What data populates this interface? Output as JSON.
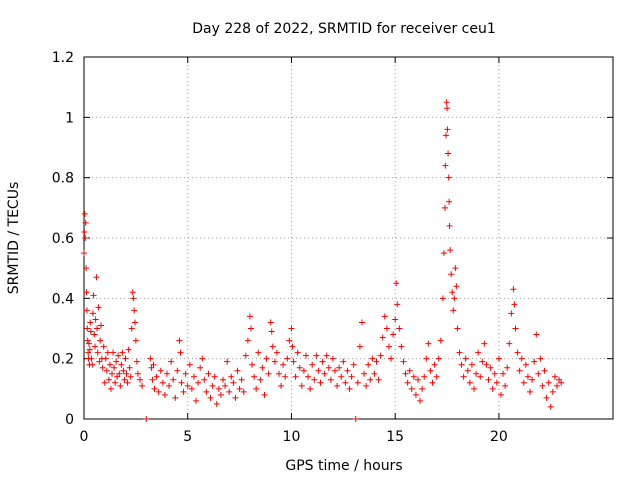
{
  "chart_data": {
    "type": "scatter",
    "title": "Day 228 of 2022, SRMTID for receiver ceu1",
    "xlabel": "GPS time / hours",
    "ylabel": "SRMTID / TECUs",
    "xlim": [
      0,
      25.5
    ],
    "ylim": [
      0,
      1.2
    ],
    "xticks": [
      0,
      5,
      10,
      15,
      20
    ],
    "xtick_labels": [
      "0",
      "5",
      "10",
      "15",
      "20"
    ],
    "yticks": [
      0,
      0.2,
      0.4,
      0.6,
      0.8,
      1.0,
      1.2
    ],
    "ytick_labels": [
      "0",
      "0.2",
      "0.4",
      "0.6",
      "0.8",
      "1",
      "1.2"
    ],
    "grid": true,
    "marker": "+",
    "color": "#ff0000",
    "series": [
      {
        "name": "SRMTID",
        "points": [
          [
            0.0,
            0.55
          ],
          [
            0.02,
            0.62
          ],
          [
            0.04,
            0.68
          ],
          [
            0.06,
            0.6
          ],
          [
            0.08,
            0.65
          ],
          [
            0.1,
            0.5
          ],
          [
            0.12,
            0.42
          ],
          [
            0.14,
            0.36
          ],
          [
            0.16,
            0.3
          ],
          [
            0.18,
            0.26
          ],
          [
            0.2,
            0.22
          ],
          [
            0.22,
            0.2
          ],
          [
            0.24,
            0.25
          ],
          [
            0.26,
            0.18
          ],
          [
            0.28,
            0.23
          ],
          [
            0.3,
            0.32
          ],
          [
            0.33,
            0.29
          ],
          [
            0.36,
            0.2
          ],
          [
            0.4,
            0.18
          ],
          [
            0.43,
            0.35
          ],
          [
            0.46,
            0.41
          ],
          [
            0.5,
            0.28
          ],
          [
            0.53,
            0.24
          ],
          [
            0.56,
            0.33
          ],
          [
            0.6,
            0.47
          ],
          [
            0.63,
            0.3
          ],
          [
            0.66,
            0.22
          ],
          [
            0.7,
            0.37
          ],
          [
            0.74,
            0.19
          ],
          [
            0.78,
            0.26
          ],
          [
            0.82,
            0.31
          ],
          [
            0.86,
            0.2
          ],
          [
            0.9,
            0.17
          ],
          [
            0.95,
            0.24
          ],
          [
            1.0,
            0.12
          ],
          [
            1.05,
            0.2
          ],
          [
            1.1,
            0.16
          ],
          [
            1.15,
            0.22
          ],
          [
            1.2,
            0.13
          ],
          [
            1.25,
            0.18
          ],
          [
            1.3,
            0.1
          ],
          [
            1.35,
            0.15
          ],
          [
            1.4,
            0.22
          ],
          [
            1.45,
            0.17
          ],
          [
            1.5,
            0.12
          ],
          [
            1.55,
            0.19
          ],
          [
            1.6,
            0.14
          ],
          [
            1.65,
            0.21
          ],
          [
            1.7,
            0.15
          ],
          [
            1.75,
            0.11
          ],
          [
            1.8,
            0.18
          ],
          [
            1.85,
            0.22
          ],
          [
            1.9,
            0.16
          ],
          [
            1.95,
            0.13
          ],
          [
            2.0,
            0.2
          ],
          [
            2.05,
            0.15
          ],
          [
            2.1,
            0.12
          ],
          [
            2.15,
            0.23
          ],
          [
            2.2,
            0.17
          ],
          [
            2.25,
            0.14
          ],
          [
            2.3,
            0.3
          ],
          [
            2.35,
            0.42
          ],
          [
            2.38,
            0.4
          ],
          [
            2.42,
            0.36
          ],
          [
            2.46,
            0.32
          ],
          [
            2.5,
            0.26
          ],
          [
            2.55,
            0.19
          ],
          [
            2.6,
            0.15
          ],
          [
            2.7,
            0.13
          ],
          [
            2.8,
            0.11
          ],
          [
            3.0,
            0.0
          ],
          [
            3.2,
            0.2
          ],
          [
            3.25,
            0.17
          ],
          [
            3.3,
            0.13
          ],
          [
            3.35,
            0.18
          ],
          [
            3.4,
            0.1
          ],
          [
            3.5,
            0.14
          ],
          [
            3.6,
            0.09
          ],
          [
            3.7,
            0.16
          ],
          [
            3.8,
            0.12
          ],
          [
            3.9,
            0.08
          ],
          [
            4.0,
            0.15
          ],
          [
            4.1,
            0.11
          ],
          [
            4.2,
            0.19
          ],
          [
            4.3,
            0.13
          ],
          [
            4.4,
            0.07
          ],
          [
            4.5,
            0.16
          ],
          [
            4.6,
            0.26
          ],
          [
            4.65,
            0.22
          ],
          [
            4.7,
            0.12
          ],
          [
            4.8,
            0.09
          ],
          [
            4.9,
            0.15
          ],
          [
            5.0,
            0.11
          ],
          [
            5.1,
            0.18
          ],
          [
            5.2,
            0.1
          ],
          [
            5.3,
            0.14
          ],
          [
            5.4,
            0.06
          ],
          [
            5.5,
            0.12
          ],
          [
            5.6,
            0.17
          ],
          [
            5.7,
            0.2
          ],
          [
            5.8,
            0.13
          ],
          [
            5.9,
            0.09
          ],
          [
            6.0,
            0.15
          ],
          [
            6.1,
            0.07
          ],
          [
            6.2,
            0.11
          ],
          [
            6.3,
            0.14
          ],
          [
            6.4,
            0.05
          ],
          [
            6.5,
            0.1
          ],
          [
            6.6,
            0.08
          ],
          [
            6.7,
            0.13
          ],
          [
            6.8,
            0.11
          ],
          [
            6.9,
            0.19
          ],
          [
            7.0,
            0.09
          ],
          [
            7.1,
            0.14
          ],
          [
            7.2,
            0.12
          ],
          [
            7.3,
            0.07
          ],
          [
            7.4,
            0.16
          ],
          [
            7.5,
            0.1
          ],
          [
            7.6,
            0.13
          ],
          [
            7.7,
            0.09
          ],
          [
            7.8,
            0.21
          ],
          [
            7.9,
            0.26
          ],
          [
            8.0,
            0.34
          ],
          [
            8.05,
            0.3
          ],
          [
            8.1,
            0.18
          ],
          [
            8.2,
            0.14
          ],
          [
            8.3,
            0.1
          ],
          [
            8.4,
            0.22
          ],
          [
            8.5,
            0.13
          ],
          [
            8.6,
            0.17
          ],
          [
            8.7,
            0.08
          ],
          [
            8.8,
            0.2
          ],
          [
            8.9,
            0.15
          ],
          [
            9.0,
            0.32
          ],
          [
            9.05,
            0.29
          ],
          [
            9.1,
            0.24
          ],
          [
            9.2,
            0.19
          ],
          [
            9.3,
            0.22
          ],
          [
            9.4,
            0.15
          ],
          [
            9.5,
            0.11
          ],
          [
            9.6,
            0.18
          ],
          [
            9.7,
            0.14
          ],
          [
            9.8,
            0.2
          ],
          [
            9.9,
            0.26
          ],
          [
            10.0,
            0.3
          ],
          [
            10.05,
            0.24
          ],
          [
            10.1,
            0.19
          ],
          [
            10.2,
            0.14
          ],
          [
            10.3,
            0.22
          ],
          [
            10.4,
            0.17
          ],
          [
            10.5,
            0.11
          ],
          [
            10.6,
            0.16
          ],
          [
            10.7,
            0.21
          ],
          [
            10.8,
            0.14
          ],
          [
            10.9,
            0.1
          ],
          [
            11.0,
            0.18
          ],
          [
            11.1,
            0.13
          ],
          [
            11.2,
            0.21
          ],
          [
            11.3,
            0.16
          ],
          [
            11.4,
            0.12
          ],
          [
            11.5,
            0.19
          ],
          [
            11.6,
            0.15
          ],
          [
            11.7,
            0.21
          ],
          [
            11.8,
            0.17
          ],
          [
            11.9,
            0.13
          ],
          [
            12.0,
            0.2
          ],
          [
            12.1,
            0.16
          ],
          [
            12.2,
            0.11
          ],
          [
            12.3,
            0.17
          ],
          [
            12.4,
            0.14
          ],
          [
            12.5,
            0.19
          ],
          [
            12.6,
            0.12
          ],
          [
            12.7,
            0.16
          ],
          [
            12.8,
            0.1
          ],
          [
            12.9,
            0.14
          ],
          [
            13.0,
            0.18
          ],
          [
            13.1,
            0.0
          ],
          [
            13.2,
            0.12
          ],
          [
            13.3,
            0.24
          ],
          [
            13.4,
            0.32
          ],
          [
            13.5,
            0.15
          ],
          [
            13.6,
            0.11
          ],
          [
            13.7,
            0.18
          ],
          [
            13.8,
            0.13
          ],
          [
            13.9,
            0.2
          ],
          [
            14.0,
            0.15
          ],
          [
            14.1,
            0.19
          ],
          [
            14.2,
            0.13
          ],
          [
            14.3,
            0.21
          ],
          [
            14.4,
            0.27
          ],
          [
            14.5,
            0.34
          ],
          [
            14.6,
            0.3
          ],
          [
            14.7,
            0.24
          ],
          [
            14.8,
            0.2
          ],
          [
            14.9,
            0.28
          ],
          [
            15.0,
            0.33
          ],
          [
            15.05,
            0.45
          ],
          [
            15.1,
            0.38
          ],
          [
            15.2,
            0.3
          ],
          [
            15.3,
            0.24
          ],
          [
            15.4,
            0.19
          ],
          [
            15.5,
            0.15
          ],
          [
            15.6,
            0.12
          ],
          [
            15.7,
            0.16
          ],
          [
            15.8,
            0.1
          ],
          [
            15.9,
            0.14
          ],
          [
            16.0,
            0.08
          ],
          [
            16.1,
            0.13
          ],
          [
            16.2,
            0.06
          ],
          [
            16.3,
            0.1
          ],
          [
            16.4,
            0.14
          ],
          [
            16.5,
            0.2
          ],
          [
            16.6,
            0.25
          ],
          [
            16.7,
            0.16
          ],
          [
            16.8,
            0.12
          ],
          [
            16.9,
            0.18
          ],
          [
            17.0,
            0.14
          ],
          [
            17.1,
            0.2
          ],
          [
            17.2,
            0.26
          ],
          [
            17.3,
            0.4
          ],
          [
            17.35,
            0.55
          ],
          [
            17.4,
            0.7
          ],
          [
            17.42,
            0.84
          ],
          [
            17.45,
            0.94
          ],
          [
            17.48,
            1.05
          ],
          [
            17.5,
            1.03
          ],
          [
            17.52,
            0.96
          ],
          [
            17.55,
            0.88
          ],
          [
            17.58,
            0.8
          ],
          [
            17.6,
            0.72
          ],
          [
            17.62,
            0.64
          ],
          [
            17.65,
            0.56
          ],
          [
            17.7,
            0.48
          ],
          [
            17.75,
            0.42
          ],
          [
            17.8,
            0.36
          ],
          [
            17.85,
            0.4
          ],
          [
            17.9,
            0.5
          ],
          [
            17.95,
            0.44
          ],
          [
            18.0,
            0.3
          ],
          [
            18.1,
            0.22
          ],
          [
            18.2,
            0.18
          ],
          [
            18.3,
            0.14
          ],
          [
            18.4,
            0.2
          ],
          [
            18.5,
            0.16
          ],
          [
            18.6,
            0.12
          ],
          [
            18.7,
            0.18
          ],
          [
            18.8,
            0.1
          ],
          [
            18.9,
            0.15
          ],
          [
            19.0,
            0.22
          ],
          [
            19.1,
            0.14
          ],
          [
            19.2,
            0.19
          ],
          [
            19.3,
            0.25
          ],
          [
            19.4,
            0.18
          ],
          [
            19.5,
            0.13
          ],
          [
            19.6,
            0.17
          ],
          [
            19.7,
            0.1
          ],
          [
            19.8,
            0.15
          ],
          [
            19.9,
            0.12
          ],
          [
            20.0,
            0.2
          ],
          [
            20.1,
            0.08
          ],
          [
            20.2,
            0.15
          ],
          [
            20.3,
            0.11
          ],
          [
            20.4,
            0.17
          ],
          [
            20.5,
            0.25
          ],
          [
            20.6,
            0.35
          ],
          [
            20.7,
            0.43
          ],
          [
            20.75,
            0.38
          ],
          [
            20.8,
            0.3
          ],
          [
            20.9,
            0.22
          ],
          [
            21.0,
            0.16
          ],
          [
            21.1,
            0.2
          ],
          [
            21.2,
            0.12
          ],
          [
            21.3,
            0.18
          ],
          [
            21.4,
            0.14
          ],
          [
            21.5,
            0.09
          ],
          [
            21.6,
            0.13
          ],
          [
            21.7,
            0.19
          ],
          [
            21.8,
            0.28
          ],
          [
            21.9,
            0.15
          ],
          [
            22.0,
            0.2
          ],
          [
            22.1,
            0.11
          ],
          [
            22.2,
            0.16
          ],
          [
            22.3,
            0.07
          ],
          [
            22.4,
            0.12
          ],
          [
            22.5,
            0.04
          ],
          [
            22.6,
            0.09
          ],
          [
            22.7,
            0.14
          ],
          [
            22.8,
            0.11
          ],
          [
            22.9,
            0.13
          ],
          [
            23.0,
            0.12
          ]
        ]
      }
    ]
  }
}
